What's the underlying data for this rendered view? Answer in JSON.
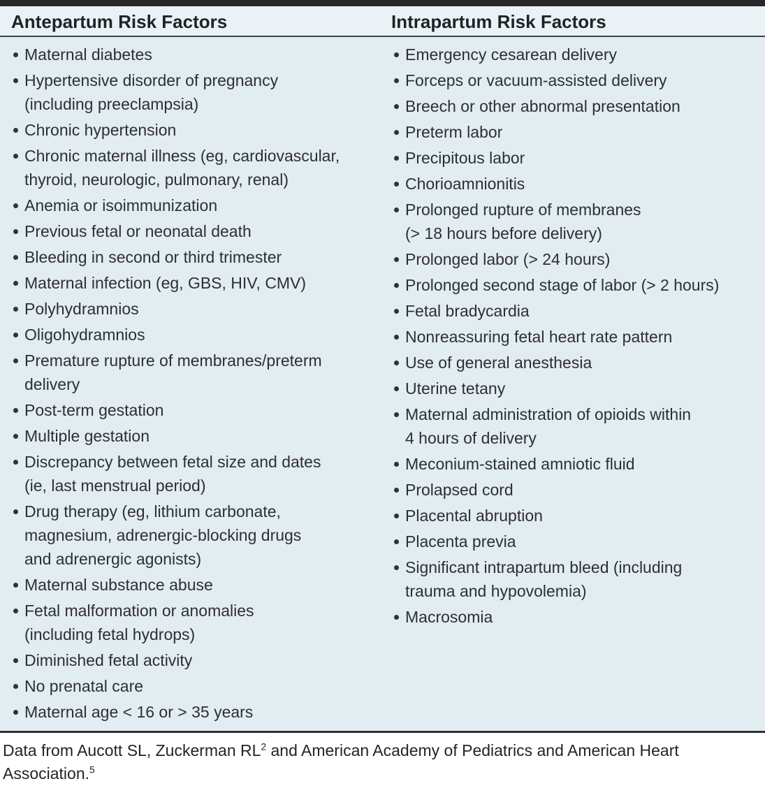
{
  "table": {
    "columns": [
      {
        "header": "Antepartum Risk Factors",
        "items": [
          "Maternal diabetes",
          "Hypertensive disorder of pregnancy\n(including preeclampsia)",
          "Chronic hypertension",
          "Chronic maternal illness (eg, cardiovascular,\nthyroid, neurologic, pulmonary, renal)",
          "Anemia or isoimmunization",
          "Previous fetal or neonatal death",
          "Bleeding in second or third trimester",
          "Maternal infection (eg, GBS, HIV, CMV)",
          "Polyhydramnios",
          "Oligohydramnios",
          "Premature rupture of membranes/preterm\ndelivery",
          "Post-term gestation",
          "Multiple gestation",
          "Discrepancy between fetal size and dates\n(ie, last menstrual period)",
          "Drug therapy (eg, lithium carbonate,\nmagnesium, adrenergic-blocking drugs\nand adrenergic agonists)",
          "Maternal substance abuse",
          "Fetal malformation or anomalies\n(including fetal hydrops)",
          "Diminished fetal activity",
          "No prenatal care",
          "Maternal age < 16 or > 35 years"
        ]
      },
      {
        "header": "Intrapartum Risk Factors",
        "items": [
          "Emergency cesarean delivery",
          "Forceps or vacuum-assisted delivery",
          "Breech or other abnormal presentation",
          "Preterm labor",
          "Precipitous labor",
          "Chorioamnionitis",
          "Prolonged rupture of membranes\n(> 18 hours before delivery)",
          "Prolonged labor (> 24 hours)",
          "Prolonged second stage of labor (> 2 hours)",
          "Fetal bradycardia",
          "Nonreassuring fetal heart rate pattern",
          "Use of general anesthesia",
          "Uterine tetany",
          "Maternal administration of opioids within\n4 hours of delivery",
          "Meconium-stained amniotic fluid",
          "Prolapsed cord",
          "Placental abruption",
          "Placenta previa",
          "Significant intrapartum bleed (including\ntrauma and hypovolemia)",
          "Macrosomia"
        ]
      }
    ]
  },
  "footnote": {
    "part1": "Data from Aucott SL, Zuckerman RL",
    "sup1": "2",
    "part2": " and American Academy of Pediatrics and American Heart Association.",
    "sup2": "5"
  },
  "colors": {
    "top_bar": "#282828",
    "header_background": "#eaf2f6",
    "body_background": "#e2edf2",
    "rule_dark": "#3a4448",
    "text": "#2f2f2f"
  }
}
